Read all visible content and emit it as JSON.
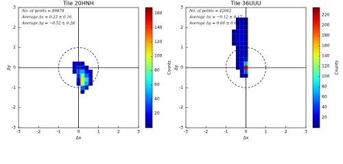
{
  "chart_data": [
    {
      "type": "hist2d",
      "title": "Tile 20HNH",
      "annotations": [
        "No. of points = 89878",
        "Average Δx = 0.23 ± 0.16",
        "Average Δy = −0.52 ± 0.28"
      ],
      "xlabel": "Δx",
      "ylabel": "Δy",
      "xlim": [
        -3,
        3
      ],
      "ylim": [
        -3,
        3
      ],
      "xticks": [
        -3,
        -2,
        -1,
        0,
        1,
        2,
        3
      ],
      "yticks": [
        -3,
        -2,
        -1,
        0,
        1,
        2,
        3
      ],
      "circle_radius": 1,
      "bin_width": 0.2,
      "colormap": "jet",
      "clim": [
        0,
        168
      ],
      "cticks": [
        20,
        40,
        60,
        80,
        100,
        120,
        140,
        160
      ],
      "colorbar_label": "Counts",
      "cells": {
        "x": [
          -0.2,
          0,
          0.2,
          -0.2,
          0,
          0.2,
          0.4,
          -0.2,
          0,
          0.2,
          0.4,
          0.6,
          0,
          0.2,
          0.4,
          0.6,
          0,
          0.2,
          0.4,
          0.6,
          0,
          0.2,
          0.4,
          0.6,
          0.2,
          0.4,
          0.2
        ],
        "y": [
          0.2,
          0.2,
          0.2,
          0,
          0,
          0,
          0,
          -0.2,
          -0.2,
          -0.2,
          -0.2,
          -0.2,
          -0.4,
          -0.4,
          -0.4,
          -0.4,
          -0.6,
          -0.6,
          -0.6,
          -0.6,
          -0.8,
          -0.8,
          -0.8,
          -0.8,
          -1.0,
          -1.0,
          -1.2
        ],
        "counts": [
          10,
          15,
          8,
          15,
          30,
          25,
          10,
          10,
          40,
          50,
          20,
          8,
          35,
          80,
          40,
          12,
          25,
          110,
          60,
          15,
          15,
          90,
          50,
          10,
          40,
          25,
          10
        ]
      }
    },
    {
      "type": "hist2d",
      "title": "Tile 36UUU",
      "annotations": [
        "No. of points = 42062",
        "Average Δx = −0.12 ± 0.17",
        "Average Δy = 0.66 ± 0.68"
      ],
      "xlabel": "Δx",
      "ylabel": "Δy",
      "xlim": [
        -3,
        3
      ],
      "ylim": [
        -3,
        3
      ],
      "xticks": [
        -3,
        -2,
        -1,
        0,
        1,
        2,
        3
      ],
      "yticks": [
        -3,
        -2,
        -1,
        0,
        1,
        2,
        3
      ],
      "circle_radius": 1,
      "bin_width": 0.2,
      "colormap": "jet",
      "clim": [
        0,
        235
      ],
      "cticks": [
        20,
        40,
        60,
        80,
        100,
        120,
        140,
        160,
        180,
        200,
        220
      ],
      "colorbar_label": "Counts",
      "cells": {
        "x": [
          -0.4,
          -0.2,
          0,
          -0.4,
          -0.2,
          0,
          -0.4,
          -0.2,
          0,
          -0.6,
          -0.4,
          -0.2,
          0,
          -0.6,
          -0.4,
          -0.2,
          0,
          -0.6,
          -0.4,
          -0.2,
          0,
          -0.6,
          -0.4,
          -0.2,
          0,
          -0.4,
          -0.2,
          0,
          -0.4,
          -0.2,
          0,
          -0.4,
          -0.2,
          0,
          -0.4,
          -0.2,
          0,
          -0.4,
          -0.2,
          0,
          -0.4,
          -0.2,
          0,
          -0.2,
          0,
          -0.2,
          0
        ],
        "y": [
          2.4,
          2.4,
          2.4,
          2.2,
          2.2,
          2.2,
          2.0,
          2.0,
          2.0,
          1.8,
          1.8,
          1.8,
          1.8,
          1.6,
          1.6,
          1.6,
          1.6,
          1.4,
          1.4,
          1.4,
          1.4,
          1.2,
          1.2,
          1.2,
          1.2,
          1.0,
          1.0,
          1.0,
          0.8,
          0.8,
          0.8,
          0.6,
          0.6,
          0.6,
          0.4,
          0.4,
          0.4,
          0.2,
          0.2,
          0.2,
          0,
          0,
          0,
          -0.2,
          -0.2,
          -0.4,
          -0.4
        ],
        "counts": [
          4,
          8,
          3,
          6,
          12,
          5,
          8,
          15,
          6,
          3,
          10,
          18,
          8,
          4,
          12,
          20,
          9,
          4,
          12,
          22,
          10,
          3,
          10,
          20,
          12,
          8,
          18,
          14,
          6,
          15,
          16,
          6,
          14,
          20,
          5,
          15,
          35,
          6,
          25,
          80,
          4,
          30,
          200,
          12,
          60,
          5,
          15
        ]
      }
    }
  ]
}
